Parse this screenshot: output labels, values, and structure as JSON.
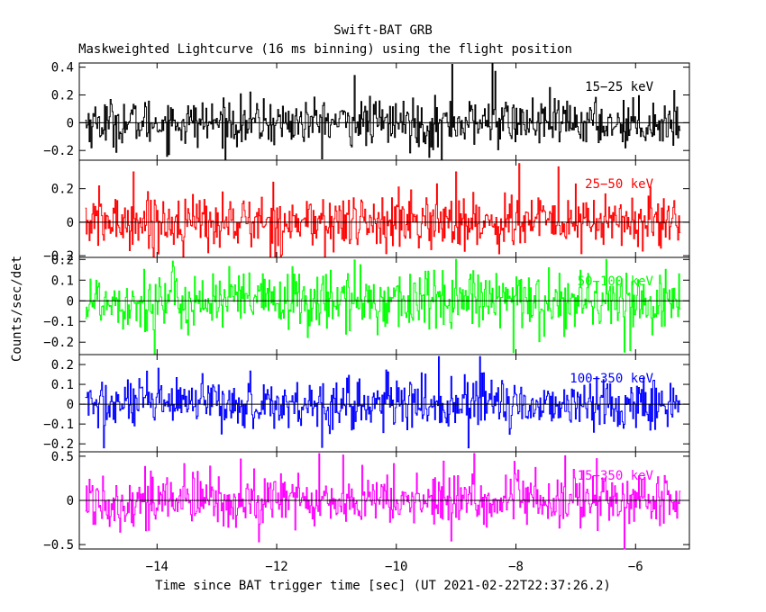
{
  "chart_data": {
    "type": "line",
    "title": "Swift-BAT GRB",
    "subtitle": "Maskweighted Lightcurve (16 ms binning) using the flight position",
    "xlabel": "Time since BAT trigger time [sec] (UT 2021-02-22T22:37:26.2)",
    "ylabel": "Counts/sec/det",
    "xlim": [
      -15.3,
      -5.1
    ],
    "data_xrange": [
      -15.2,
      -5.25
    ],
    "x_ticks": [
      -14,
      -12,
      -10,
      -8,
      -6
    ],
    "x_tick_labels": [
      "−14",
      "−12",
      "−10",
      "−8",
      "−6"
    ],
    "bin_width_sec": 0.016,
    "panels": [
      {
        "name": "15-25 keV",
        "label": "15−25 keV",
        "color": "#000000",
        "ylim": [
          -0.27,
          0.43
        ],
        "y_ticks": [
          -0.2,
          0,
          0.2,
          0.4
        ],
        "y_tick_labels": [
          "−0.2",
          "0",
          "0.2",
          "0.4"
        ],
        "noise_sigma": 0.085,
        "peaks": [
          {
            "x": -9.07,
            "y": 0.42
          },
          {
            "x": -8.4,
            "y": 0.43
          },
          {
            "x": -8.35,
            "y": 0.37
          },
          {
            "x": -10.7,
            "y": 0.34
          },
          {
            "x": -9.25,
            "y": -0.27
          },
          {
            "x": -9.45,
            "y": -0.25
          }
        ]
      },
      {
        "name": "25-50 keV",
        "label": "25−50 keV",
        "color": "#ff0000",
        "ylim": [
          -0.21,
          0.37
        ],
        "y_ticks": [
          -0.2,
          0,
          0.2
        ],
        "y_tick_labels": [
          "−0.2",
          "0",
          "0.2"
        ],
        "noise_sigma": 0.085,
        "peaks": [
          {
            "x": -7.95,
            "y": 0.35
          },
          {
            "x": -7.3,
            "y": 0.33
          },
          {
            "x": -14.4,
            "y": 0.3
          },
          {
            "x": -9.0,
            "y": 0.3
          },
          {
            "x": -11.2,
            "y": -0.21
          }
        ]
      },
      {
        "name": "50-100 keV",
        "label": "50−100 keV",
        "color": "#00ff00",
        "ylim": [
          -0.26,
          0.21
        ],
        "y_ticks": [
          -0.2,
          -0.1,
          0,
          0.1,
          0.2
        ],
        "y_tick_labels": [
          "−0.2",
          "−0.1",
          "0",
          "0.1",
          "0.2"
        ],
        "noise_sigma": 0.075,
        "peaks": [
          {
            "x": -14.05,
            "y": -0.26
          },
          {
            "x": -8.05,
            "y": -0.25
          },
          {
            "x": -6.1,
            "y": -0.24
          },
          {
            "x": -9.0,
            "y": 0.2
          },
          {
            "x": -6.5,
            "y": 0.2
          }
        ]
      },
      {
        "name": "100-350 keV",
        "label": "100−350 keV",
        "color": "#0000ff",
        "ylim": [
          -0.24,
          0.25
        ],
        "y_ticks": [
          -0.2,
          -0.1,
          0,
          0.1,
          0.2
        ],
        "y_tick_labels": [
          "−0.2",
          "−0.1",
          "0",
          "0.1",
          "0.2"
        ],
        "noise_sigma": 0.065,
        "peaks": [
          {
            "x": -9.3,
            "y": 0.24
          },
          {
            "x": -8.6,
            "y": 0.24
          },
          {
            "x": -14.9,
            "y": -0.22
          },
          {
            "x": -8.8,
            "y": -0.22
          }
        ]
      },
      {
        "name": "15-350 keV",
        "label": "15−350 keV",
        "color": "#ff00ff",
        "ylim": [
          -0.55,
          0.55
        ],
        "y_ticks": [
          -0.5,
          0,
          0.5
        ],
        "y_tick_labels": [
          "−0.5",
          "0",
          "0.5"
        ],
        "noise_sigma": 0.16,
        "peaks": [
          {
            "x": -11.3,
            "y": 0.53
          },
          {
            "x": -8.7,
            "y": 0.53
          },
          {
            "x": -6.2,
            "y": -0.55
          },
          {
            "x": -12.3,
            "y": -0.47
          }
        ]
      }
    ]
  }
}
